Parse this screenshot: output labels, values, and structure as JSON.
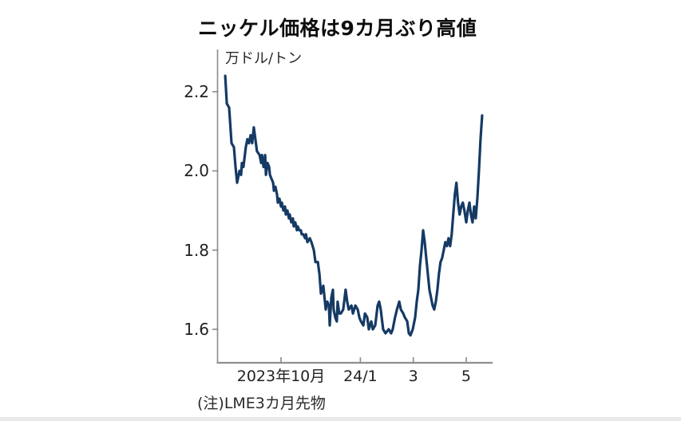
{
  "figure": {
    "title": "ニッケル価格は9カ月ぶり高値",
    "unit_label": "万ドル/トン",
    "note": "(注)LME3カ月先物"
  },
  "chart_data": {
    "type": "line",
    "title": "ニッケル価格は9カ月ぶり高値",
    "ylabel": "万ドル/トン",
    "note": "(注)LME3カ月先物",
    "legend": "none",
    "grid": false,
    "y_ticks": [
      2.2,
      2.0,
      1.8,
      1.6
    ],
    "ylim": [
      1.51,
      2.31
    ],
    "x_unit": "months since 2023-10-01",
    "xlim": [
      -2.43,
      8.0
    ],
    "x_ticks": [
      {
        "t": 0,
        "label": "2023年10月"
      },
      {
        "t": 3,
        "label": "24/1"
      },
      {
        "t": 5,
        "label": "3"
      },
      {
        "t": 7,
        "label": "5"
      }
    ],
    "colors": {
      "line": "#153a64",
      "axis": "#8f8f8f",
      "text": "#222222",
      "title": "#0d0d0d",
      "background": "#ffffff"
    },
    "series": [
      {
        "name": "LMEニッケル3カ月先物 (万ドル/トン)",
        "points": [
          [
            -2.11,
            2.24
          ],
          [
            -2.05,
            2.17
          ],
          [
            -1.96,
            2.16
          ],
          [
            -1.87,
            2.07
          ],
          [
            -1.78,
            2.06
          ],
          [
            -1.72,
            2.01
          ],
          [
            -1.66,
            1.97
          ],
          [
            -1.57,
            2.0
          ],
          [
            -1.51,
            1.99
          ],
          [
            -1.48,
            2.02
          ],
          [
            -1.42,
            2.01
          ],
          [
            -1.33,
            2.06
          ],
          [
            -1.27,
            2.08
          ],
          [
            -1.21,
            2.07
          ],
          [
            -1.15,
            2.09
          ],
          [
            -1.09,
            2.07
          ],
          [
            -1.03,
            2.11
          ],
          [
            -0.97,
            2.08
          ],
          [
            -0.91,
            2.05
          ],
          [
            -0.81,
            2.04
          ],
          [
            -0.75,
            2.02
          ],
          [
            -0.72,
            2.04
          ],
          [
            -0.66,
            2.01
          ],
          [
            -0.6,
            2.04
          ],
          [
            -0.57,
            1.99
          ],
          [
            -0.51,
            2.02
          ],
          [
            -0.45,
            2.01
          ],
          [
            -0.42,
            1.99
          ],
          [
            -0.36,
            1.98
          ],
          [
            -0.3,
            1.97
          ],
          [
            -0.27,
            1.95
          ],
          [
            -0.21,
            1.96
          ],
          [
            -0.15,
            1.94
          ],
          [
            -0.12,
            1.92
          ],
          [
            -0.06,
            1.93
          ],
          [
            0,
            1.91
          ],
          [
            0.03,
            1.92
          ],
          [
            0.09,
            1.9
          ],
          [
            0.15,
            1.91
          ],
          [
            0.18,
            1.89
          ],
          [
            0.24,
            1.9
          ],
          [
            0.3,
            1.88
          ],
          [
            0.33,
            1.89
          ],
          [
            0.39,
            1.87
          ],
          [
            0.45,
            1.88
          ],
          [
            0.48,
            1.86
          ],
          [
            0.54,
            1.87
          ],
          [
            0.6,
            1.85
          ],
          [
            0.63,
            1.86
          ],
          [
            0.69,
            1.85
          ],
          [
            0.75,
            1.85
          ],
          [
            0.78,
            1.84
          ],
          [
            0.84,
            1.84
          ],
          [
            0.91,
            1.83
          ],
          [
            0.94,
            1.84
          ],
          [
            1,
            1.82
          ],
          [
            1.09,
            1.83
          ],
          [
            1.15,
            1.82
          ],
          [
            1.24,
            1.8
          ],
          [
            1.3,
            1.77
          ],
          [
            1.39,
            1.77
          ],
          [
            1.45,
            1.74
          ],
          [
            1.51,
            1.69
          ],
          [
            1.6,
            1.71
          ],
          [
            1.69,
            1.65
          ],
          [
            1.75,
            1.67
          ],
          [
            1.81,
            1.66
          ],
          [
            1.84,
            1.61
          ],
          [
            1.9,
            1.68
          ],
          [
            1.96,
            1.7
          ],
          [
            1.99,
            1.65
          ],
          [
            2.05,
            1.63
          ],
          [
            2.11,
            1.62
          ],
          [
            2.14,
            1.67
          ],
          [
            2.2,
            1.64
          ],
          [
            2.26,
            1.64
          ],
          [
            2.35,
            1.65
          ],
          [
            2.44,
            1.7
          ],
          [
            2.5,
            1.67
          ],
          [
            2.56,
            1.65
          ],
          [
            2.66,
            1.66
          ],
          [
            2.72,
            1.64
          ],
          [
            2.81,
            1.66
          ],
          [
            2.9,
            1.65
          ],
          [
            2.96,
            1.63
          ],
          [
            3.02,
            1.62
          ],
          [
            3.11,
            1.61
          ],
          [
            3.17,
            1.64
          ],
          [
            3.26,
            1.63
          ],
          [
            3.32,
            1.6
          ],
          [
            3.41,
            1.62
          ],
          [
            3.47,
            1.6
          ],
          [
            3.56,
            1.61
          ],
          [
            3.65,
            1.66
          ],
          [
            3.71,
            1.67
          ],
          [
            3.77,
            1.65
          ],
          [
            3.86,
            1.6
          ],
          [
            3.95,
            1.59
          ],
          [
            4.07,
            1.6
          ],
          [
            4.16,
            1.59
          ],
          [
            4.22,
            1.6
          ],
          [
            4.31,
            1.63
          ],
          [
            4.38,
            1.65
          ],
          [
            4.47,
            1.67
          ],
          [
            4.53,
            1.65
          ],
          [
            4.62,
            1.64
          ],
          [
            4.68,
            1.63
          ],
          [
            4.77,
            1.62
          ],
          [
            4.83,
            1.59
          ],
          [
            4.89,
            1.585
          ],
          [
            4.98,
            1.6
          ],
          [
            5.07,
            1.63
          ],
          [
            5.13,
            1.67
          ],
          [
            5.19,
            1.7
          ],
          [
            5.25,
            1.76
          ],
          [
            5.31,
            1.8
          ],
          [
            5.37,
            1.85
          ],
          [
            5.43,
            1.82
          ],
          [
            5.49,
            1.78
          ],
          [
            5.55,
            1.74
          ],
          [
            5.61,
            1.7
          ],
          [
            5.67,
            1.68
          ],
          [
            5.73,
            1.66
          ],
          [
            5.79,
            1.65
          ],
          [
            5.85,
            1.67
          ],
          [
            5.91,
            1.7
          ],
          [
            5.97,
            1.74
          ],
          [
            6.03,
            1.77
          ],
          [
            6.09,
            1.78
          ],
          [
            6.15,
            1.8
          ],
          [
            6.21,
            1.82
          ],
          [
            6.27,
            1.81
          ],
          [
            6.33,
            1.83
          ],
          [
            6.39,
            1.81
          ],
          [
            6.45,
            1.84
          ],
          [
            6.51,
            1.89
          ],
          [
            6.57,
            1.94
          ],
          [
            6.63,
            1.97
          ],
          [
            6.69,
            1.92
          ],
          [
            6.75,
            1.89
          ],
          [
            6.81,
            1.91
          ],
          [
            6.87,
            1.92
          ],
          [
            6.93,
            1.9
          ],
          [
            7,
            1.87
          ],
          [
            7.06,
            1.9
          ],
          [
            7.12,
            1.92
          ],
          [
            7.18,
            1.89
          ],
          [
            7.24,
            1.87
          ],
          [
            7.3,
            1.91
          ],
          [
            7.36,
            1.88
          ],
          [
            7.42,
            1.93
          ],
          [
            7.48,
            2.0
          ],
          [
            7.54,
            2.08
          ],
          [
            7.6,
            2.14
          ]
        ]
      }
    ]
  }
}
